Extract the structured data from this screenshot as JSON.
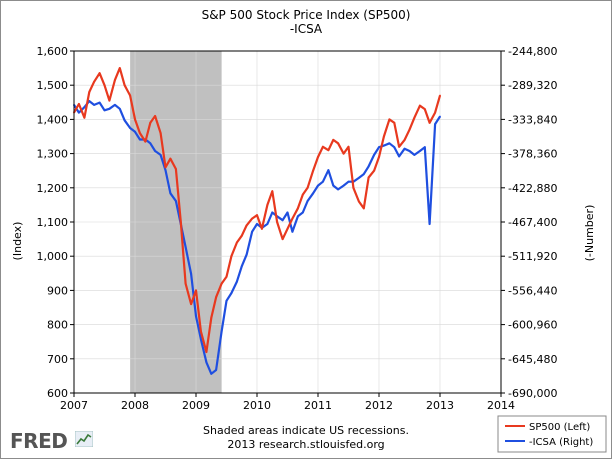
{
  "title": "S&P 500 Stock Price Index (SP500)",
  "subtitle": "-ICSA",
  "source_line1": "Shaded areas indicate US recessions.",
  "source_line2": "2013 research.stlouisfed.org",
  "logo": "FRED",
  "chart_data": {
    "type": "line",
    "title": "S&P 500 Stock Price Index (SP500)",
    "subtitle": "-ICSA",
    "xlabel": "",
    "ylabel_left": "(Index)",
    "ylabel_right": "(-Number)",
    "xlim": [
      2007,
      2014
    ],
    "ylim_left": [
      600,
      1600
    ],
    "ylim_right": [
      -690000,
      -244800
    ],
    "x_ticks": [
      "2007",
      "2008",
      "2009",
      "2010",
      "2011",
      "2012",
      "2013",
      "2014"
    ],
    "y_ticks_left": [
      "600",
      "700",
      "800",
      "900",
      "1,000",
      "1,100",
      "1,200",
      "1,300",
      "1,400",
      "1,500",
      "1,600"
    ],
    "y_ticks_right": [
      "-690,000",
      "-645,480",
      "-600,960",
      "-556,440",
      "-511,920",
      "-467,400",
      "-422,880",
      "-378,360",
      "-333,840",
      "-289,320",
      "-244,800"
    ],
    "recessions": [
      [
        2007.92,
        2009.42
      ]
    ],
    "legend": [
      "SP500 (Left)",
      "-ICSA (Right)"
    ],
    "legend_position": "bottom-right",
    "series": [
      {
        "name": "SP500 (Left)",
        "axis": "left",
        "color": "#e8391f",
        "x": [
          2007.0,
          2007.08,
          2007.17,
          2007.25,
          2007.33,
          2007.42,
          2007.5,
          2007.58,
          2007.67,
          2007.75,
          2007.83,
          2007.92,
          2008.0,
          2008.08,
          2008.17,
          2008.25,
          2008.33,
          2008.42,
          2008.5,
          2008.58,
          2008.67,
          2008.75,
          2008.83,
          2008.92,
          2009.0,
          2009.08,
          2009.17,
          2009.25,
          2009.33,
          2009.42,
          2009.5,
          2009.58,
          2009.67,
          2009.75,
          2009.83,
          2009.92,
          2010.0,
          2010.08,
          2010.17,
          2010.25,
          2010.33,
          2010.42,
          2010.5,
          2010.58,
          2010.67,
          2010.75,
          2010.83,
          2010.92,
          2011.0,
          2011.08,
          2011.17,
          2011.25,
          2011.33,
          2011.42,
          2011.5,
          2011.58,
          2011.67,
          2011.75,
          2011.83,
          2011.92,
          2012.0,
          2012.08,
          2012.17,
          2012.25,
          2012.33,
          2012.42,
          2012.5,
          2012.58,
          2012.67,
          2012.75,
          2012.83,
          2012.92,
          2013.0
        ],
        "values": [
          1420,
          1445,
          1405,
          1480,
          1510,
          1535,
          1500,
          1455,
          1515,
          1550,
          1500,
          1470,
          1400,
          1360,
          1335,
          1390,
          1410,
          1360,
          1260,
          1285,
          1255,
          1100,
          920,
          860,
          900,
          780,
          720,
          820,
          880,
          920,
          940,
          1000,
          1040,
          1060,
          1090,
          1110,
          1120,
          1080,
          1150,
          1190,
          1100,
          1050,
          1080,
          1110,
          1140,
          1180,
          1200,
          1250,
          1290,
          1320,
          1310,
          1340,
          1330,
          1300,
          1320,
          1200,
          1160,
          1140,
          1230,
          1250,
          1290,
          1350,
          1400,
          1390,
          1320,
          1340,
          1370,
          1405,
          1440,
          1430,
          1390,
          1420,
          1470
        ]
      },
      {
        "name": "-ICSA (Right)",
        "axis": "right",
        "color": "#1f4fe0",
        "x": [
          2007.0,
          2007.08,
          2007.17,
          2007.25,
          2007.33,
          2007.42,
          2007.5,
          2007.58,
          2007.67,
          2007.75,
          2007.83,
          2007.92,
          2008.0,
          2008.08,
          2008.17,
          2008.25,
          2008.33,
          2008.42,
          2008.5,
          2008.58,
          2008.67,
          2008.75,
          2008.83,
          2008.92,
          2009.0,
          2009.08,
          2009.17,
          2009.25,
          2009.33,
          2009.42,
          2009.5,
          2009.58,
          2009.67,
          2009.75,
          2009.83,
          2009.92,
          2010.0,
          2010.08,
          2010.17,
          2010.25,
          2010.33,
          2010.42,
          2010.5,
          2010.58,
          2010.67,
          2010.75,
          2010.83,
          2010.92,
          2011.0,
          2011.08,
          2011.17,
          2011.25,
          2011.33,
          2011.42,
          2011.5,
          2011.58,
          2011.67,
          2011.75,
          2011.83,
          2011.92,
          2012.0,
          2012.08,
          2012.17,
          2012.25,
          2012.33,
          2012.42,
          2012.5,
          2012.58,
          2012.67,
          2012.75,
          2012.83,
          2012.92,
          2013.0
        ],
        "values": [
          -315000,
          -325000,
          -318000,
          -310000,
          -315000,
          -312000,
          -322000,
          -320000,
          -315000,
          -320000,
          -335000,
          -345000,
          -350000,
          -360000,
          -360000,
          -365000,
          -375000,
          -380000,
          -400000,
          -430000,
          -440000,
          -470000,
          -500000,
          -535000,
          -590000,
          -620000,
          -650000,
          -665000,
          -660000,
          -610000,
          -570000,
          -560000,
          -545000,
          -525000,
          -510000,
          -480000,
          -470000,
          -475000,
          -470000,
          -455000,
          -460000,
          -465000,
          -455000,
          -480000,
          -460000,
          -455000,
          -440000,
          -430000,
          -420000,
          -415000,
          -400000,
          -420000,
          -425000,
          -420000,
          -415000,
          -415000,
          -410000,
          -405000,
          -395000,
          -380000,
          -370000,
          -368000,
          -365000,
          -370000,
          -382000,
          -372000,
          -375000,
          -380000,
          -375000,
          -370000,
          -470000,
          -340000,
          -330000
        ]
      }
    ]
  }
}
